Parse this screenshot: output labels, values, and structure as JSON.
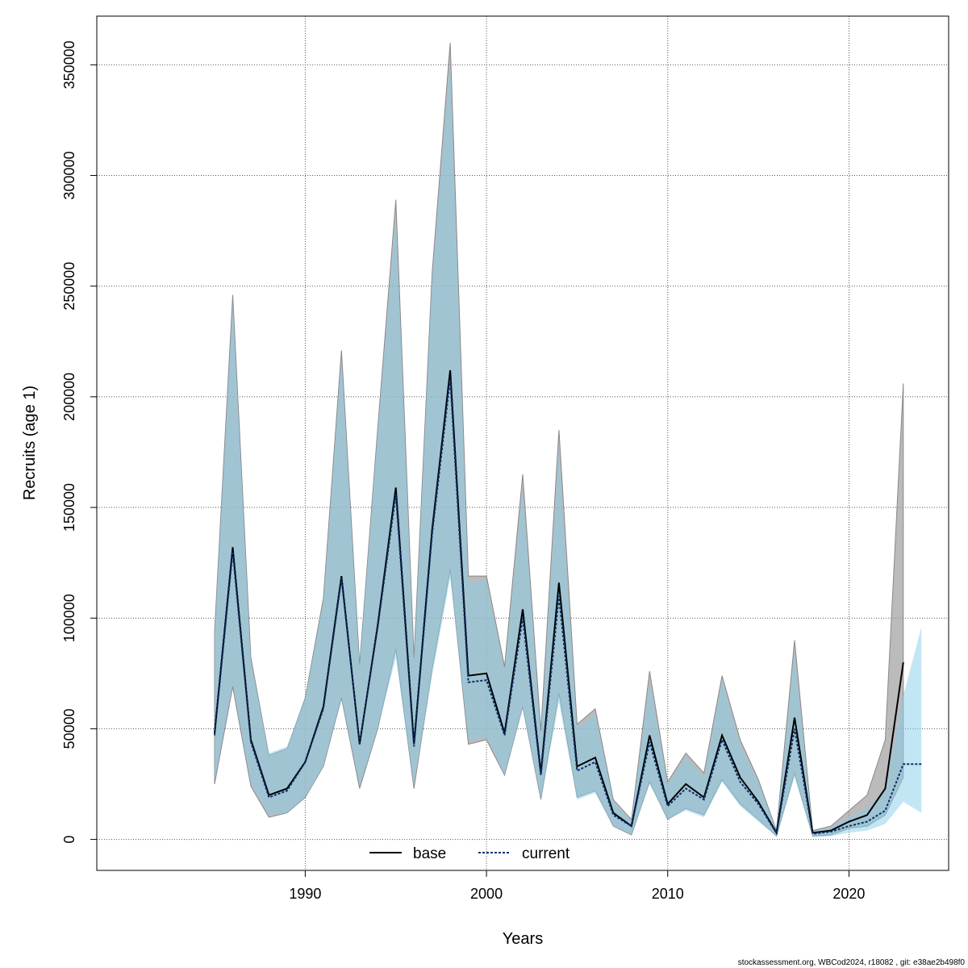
{
  "chart_data": {
    "type": "line",
    "xlabel": "Years",
    "ylabel": "Recruits (age 1)",
    "xlim": [
      1978.5,
      2025.5
    ],
    "ylim": [
      -14000,
      372000
    ],
    "xticks": [
      1990,
      2000,
      2010,
      2020
    ],
    "yticks": [
      0,
      50000,
      100000,
      150000,
      200000,
      250000,
      300000,
      350000
    ],
    "grid": true,
    "legend": {
      "placement": "bottom-center",
      "entries": [
        "base",
        "current"
      ]
    },
    "colors": {
      "base_band": "#9e9e9e",
      "current_band": "#87ceeb",
      "base_line": "#000000",
      "current_line": "#08306b"
    },
    "series": [
      {
        "name": "base",
        "x": [
          1985,
          1986,
          1987,
          1988,
          1989,
          1990,
          1991,
          1992,
          1993,
          1994,
          1995,
          1996,
          1997,
          1998,
          1999,
          2000,
          2001,
          2002,
          2003,
          2004,
          2005,
          2006,
          2007,
          2008,
          2009,
          2010,
          2011,
          2012,
          2013,
          2014,
          2015,
          2016,
          2017,
          2018,
          2019,
          2020,
          2021,
          2022,
          2023
        ],
        "values": [
          48000,
          132000,
          45000,
          20000,
          23000,
          35000,
          60000,
          119000,
          43000,
          97000,
          159000,
          43000,
          140000,
          212000,
          74000,
          75000,
          48000,
          104000,
          30000,
          116000,
          33000,
          37000,
          12000,
          6000,
          47000,
          16000,
          25000,
          19000,
          47000,
          28000,
          17000,
          3000,
          55000,
          3000,
          4000,
          8000,
          11000,
          23000,
          80000
        ],
        "lower": [
          25000,
          69000,
          24000,
          10000,
          12000,
          19000,
          33000,
          64000,
          23000,
          50000,
          86000,
          23000,
          77000,
          122000,
          43000,
          45000,
          29000,
          60000,
          18000,
          66000,
          19000,
          22000,
          6000,
          2000,
          26000,
          9000,
          14000,
          11000,
          27000,
          16000,
          9000,
          1500,
          30000,
          1500,
          2000,
          5000,
          6000,
          11000,
          28000
        ],
        "upper": [
          94000,
          246000,
          82000,
          38000,
          41000,
          64000,
          109000,
          221000,
          79000,
          186000,
          289000,
          82000,
          256000,
          360000,
          119000,
          119000,
          78000,
          165000,
          49000,
          185000,
          52000,
          59000,
          18000,
          9000,
          76000,
          26000,
          39000,
          30000,
          74000,
          45000,
          27000,
          4000,
          90000,
          4000,
          6000,
          13000,
          20000,
          45000,
          206000
        ]
      },
      {
        "name": "current",
        "x": [
          1985,
          1986,
          1987,
          1988,
          1989,
          1990,
          1991,
          1992,
          1993,
          1994,
          1995,
          1996,
          1997,
          1998,
          1999,
          2000,
          2001,
          2002,
          2003,
          2004,
          2005,
          2006,
          2007,
          2008,
          2009,
          2010,
          2011,
          2012,
          2013,
          2014,
          2015,
          2016,
          2017,
          2018,
          2019,
          2020,
          2021,
          2022,
          2023,
          2024
        ],
        "values": [
          47000,
          130000,
          44000,
          19000,
          22000,
          35000,
          59000,
          118000,
          43000,
          96000,
          156000,
          42000,
          138000,
          208000,
          71000,
          72000,
          47000,
          100000,
          29000,
          110000,
          31000,
          35000,
          11000,
          6000,
          44000,
          15000,
          23000,
          18000,
          45000,
          26000,
          16000,
          2800,
          50000,
          2500,
          3500,
          6000,
          8000,
          13000,
          34000,
          34000
        ],
        "lower": [
          26000,
          70000,
          25000,
          11000,
          12000,
          19000,
          33000,
          64000,
          24000,
          50000,
          82000,
          24000,
          74000,
          118000,
          45000,
          46000,
          29000,
          59000,
          18000,
          62000,
          18000,
          21000,
          6000,
          2000,
          25000,
          9000,
          13000,
          10000,
          26000,
          15000,
          8000,
          1500,
          28000,
          1000,
          1500,
          3000,
          4000,
          7000,
          17000,
          12000
        ],
        "upper": [
          93000,
          243000,
          81000,
          39000,
          42000,
          64000,
          108000,
          218000,
          79000,
          185000,
          283000,
          81000,
          254000,
          352000,
          116000,
          117000,
          76000,
          159000,
          47000,
          176000,
          50000,
          57000,
          17000,
          8500,
          72000,
          25000,
          37000,
          28000,
          72000,
          43000,
          26000,
          4000,
          85000,
          3500,
          5500,
          10000,
          14000,
          22000,
          65000,
          96000
        ]
      }
    ]
  },
  "footer": "stockassessment.org, WBCod2024, r18082 , git: e38ae2b498f0"
}
